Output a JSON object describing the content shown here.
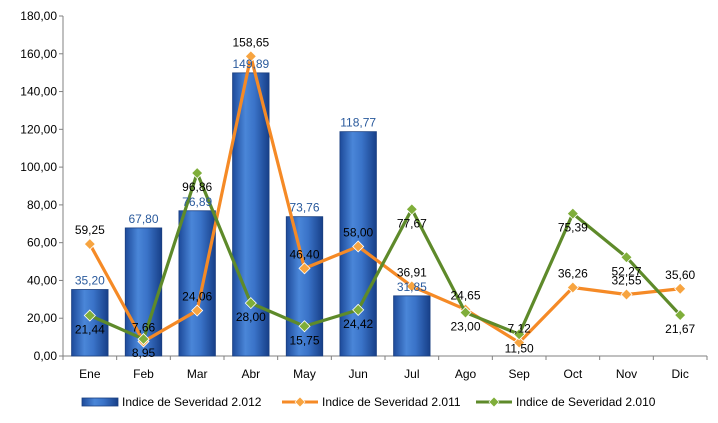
{
  "chart_data": {
    "type": "bar",
    "categories": [
      "Ene",
      "Feb",
      "Mar",
      "Abr",
      "May",
      "Jun",
      "Jul",
      "Ago",
      "Sep",
      "Oct",
      "Nov",
      "Dic"
    ],
    "ylim": [
      0,
      180
    ],
    "yticks": [
      "0,00",
      "20,00",
      "40,00",
      "60,00",
      "80,00",
      "100,00",
      "120,00",
      "140,00",
      "160,00",
      "180,00"
    ],
    "legend_position": "bottom",
    "grid": false,
    "series": [
      {
        "name": "Indice de Severidad 2.012",
        "kind": "bar",
        "color": "#2f63b8",
        "values": [
          35.2,
          67.8,
          76.89,
          149.89,
          73.76,
          118.77,
          31.85,
          null,
          null,
          null,
          null,
          null
        ],
        "labels": [
          "35,20",
          "67,80",
          "76,89",
          "149,89",
          "73,76",
          "118,77",
          "31,85",
          "",
          "",
          "",
          "",
          ""
        ]
      },
      {
        "name": "Indice de Severidad 2.011",
        "kind": "line",
        "color": "#f58a26",
        "marker_color": "#f7a440",
        "values": [
          59.25,
          7.66,
          24.06,
          158.65,
          46.4,
          58.0,
          36.91,
          24.65,
          7.12,
          36.26,
          32.55,
          35.6
        ],
        "labels": [
          "59,25",
          "7,66",
          "24,06",
          "158,65",
          "46,40",
          "58,00",
          "36,91",
          "24,65",
          "7,12",
          "36,26",
          "32,55",
          "35,60"
        ]
      },
      {
        "name": "Indice de Severidad 2.010",
        "kind": "line",
        "color": "#5e8a2a",
        "marker_color": "#7fae3a",
        "values": [
          21.44,
          8.95,
          96.86,
          28.0,
          15.75,
          24.42,
          77.67,
          23.0,
          11.5,
          75.39,
          52.27,
          21.67
        ],
        "labels": [
          "21,44",
          "8,95",
          "96,86",
          "28,00",
          "15,75",
          "24,42",
          "77,67",
          "23,00",
          "11,50",
          "75,39",
          "52,27",
          "21,67"
        ]
      }
    ]
  }
}
